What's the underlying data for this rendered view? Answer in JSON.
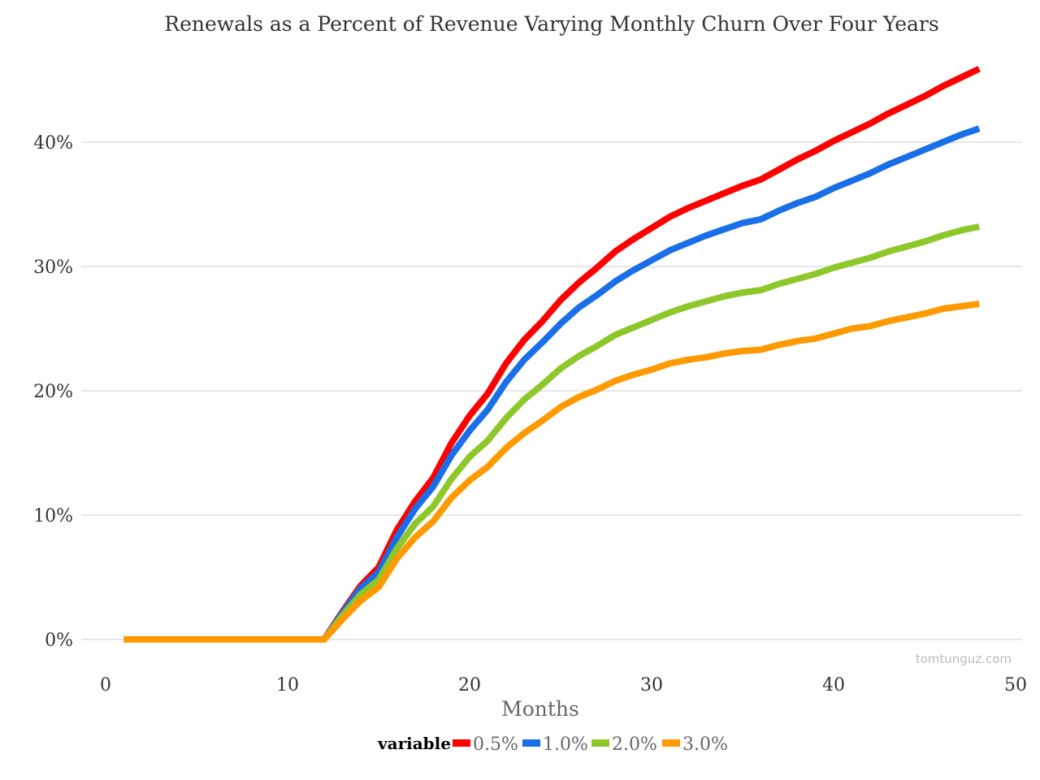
{
  "chart_data": {
    "type": "line",
    "title": "Renewals as a Percent of Revenue Varying Monthly Churn Over Four Years",
    "xlabel": "Months",
    "ylabel": "",
    "xlim": [
      0,
      50
    ],
    "ylim": [
      0,
      0.47
    ],
    "xticks": [
      0,
      10,
      20,
      30,
      40,
      50
    ],
    "xtick_labels": [
      "0",
      "10",
      "20",
      "30",
      "40",
      "50"
    ],
    "yticks": [
      0,
      0.1,
      0.2,
      0.3,
      0.4
    ],
    "ytick_labels": [
      "0%",
      "10%",
      "20%",
      "30%",
      "40%"
    ],
    "grid": "horizontal",
    "legend_title": "variable",
    "legend_position": "bottom",
    "watermark": "tomtunguz.com",
    "x": [
      1,
      2,
      3,
      4,
      5,
      6,
      7,
      8,
      9,
      10,
      11,
      12,
      13,
      14,
      15,
      16,
      17,
      18,
      19,
      20,
      21,
      22,
      23,
      24,
      25,
      26,
      27,
      28,
      29,
      30,
      31,
      32,
      33,
      34,
      35,
      36,
      37,
      38,
      39,
      40,
      41,
      42,
      43,
      44,
      45,
      46,
      47,
      48
    ],
    "series": [
      {
        "name": "0.5%",
        "color": "#ff0000",
        "values": [
          0,
          0,
          0,
          0,
          0,
          0,
          0,
          0,
          0,
          0,
          0,
          0,
          0.022,
          0.043,
          0.058,
          0.088,
          0.111,
          0.13,
          0.158,
          0.18,
          0.198,
          0.222,
          0.241,
          0.256,
          0.273,
          0.287,
          0.299,
          0.312,
          0.322,
          0.331,
          0.34,
          0.347,
          0.353,
          0.359,
          0.365,
          0.37,
          0.378,
          0.386,
          0.393,
          0.401,
          0.408,
          0.415,
          0.423,
          0.43,
          0.437,
          0.445,
          0.452,
          0.459
        ]
      },
      {
        "name": "1.0%",
        "color": "#1a6fe8",
        "values": [
          0,
          0,
          0,
          0,
          0,
          0,
          0,
          0,
          0,
          0,
          0,
          0,
          0.021,
          0.041,
          0.054,
          0.082,
          0.105,
          0.123,
          0.148,
          0.168,
          0.185,
          0.207,
          0.225,
          0.239,
          0.254,
          0.267,
          0.277,
          0.288,
          0.297,
          0.305,
          0.313,
          0.319,
          0.325,
          0.33,
          0.335,
          0.338,
          0.345,
          0.351,
          0.356,
          0.363,
          0.369,
          0.375,
          0.382,
          0.388,
          0.394,
          0.4,
          0.406,
          0.411
        ]
      },
      {
        "name": "2.0%",
        "color": "#8ec72a",
        "values": [
          0,
          0,
          0,
          0,
          0,
          0,
          0,
          0,
          0,
          0,
          0,
          0,
          0.019,
          0.036,
          0.048,
          0.073,
          0.093,
          0.107,
          0.129,
          0.147,
          0.16,
          0.178,
          0.193,
          0.205,
          0.218,
          0.228,
          0.236,
          0.245,
          0.251,
          0.257,
          0.263,
          0.268,
          0.272,
          0.276,
          0.279,
          0.281,
          0.286,
          0.29,
          0.294,
          0.299,
          0.303,
          0.307,
          0.312,
          0.316,
          0.32,
          0.325,
          0.329,
          0.332
        ]
      },
      {
        "name": "3.0%",
        "color": "#ff9900",
        "values": [
          0,
          0,
          0,
          0,
          0,
          0,
          0,
          0,
          0,
          0,
          0,
          0,
          0.016,
          0.031,
          0.042,
          0.065,
          0.082,
          0.095,
          0.114,
          0.128,
          0.139,
          0.154,
          0.166,
          0.176,
          0.187,
          0.195,
          0.201,
          0.208,
          0.213,
          0.217,
          0.222,
          0.225,
          0.227,
          0.23,
          0.232,
          0.233,
          0.237,
          0.24,
          0.242,
          0.246,
          0.25,
          0.252,
          0.256,
          0.259,
          0.262,
          0.266,
          0.268,
          0.27
        ]
      }
    ]
  }
}
